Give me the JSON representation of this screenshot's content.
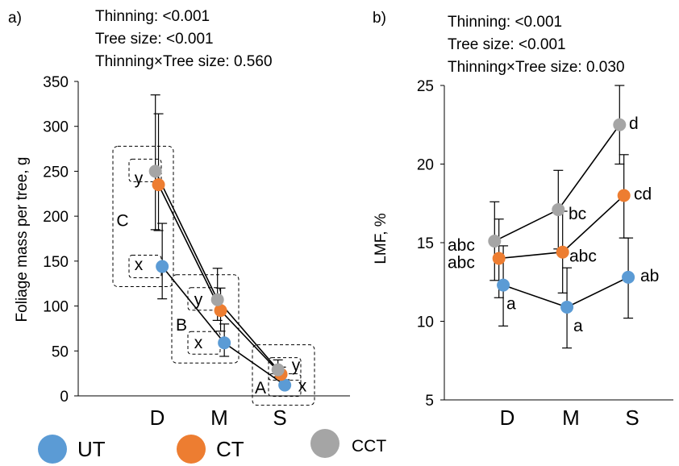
{
  "legend": [
    {
      "name": "UT",
      "color": "#5b9bd5"
    },
    {
      "name": "CT",
      "color": "#ed7d31"
    },
    {
      "name": "CCT",
      "color": "#a5a5a5"
    }
  ],
  "chart_data": [
    {
      "type": "line",
      "panel_label": "a)",
      "stats": [
        "Thinning: <0.001",
        "Tree size: <0.001",
        "Thinning×Tree size: 0.560"
      ],
      "ylabel": "Foliage mass per tree, g",
      "xlabel": "",
      "categories": [
        "D",
        "M",
        "S"
      ],
      "ylim": [
        0,
        350
      ],
      "yticks": [
        0,
        50,
        100,
        150,
        200,
        250,
        300,
        350
      ],
      "series": [
        {
          "name": "UT",
          "color": "#5b9bd5",
          "values": [
            144,
            59,
            12
          ],
          "err_low": [
            108,
            44,
            8
          ],
          "err_high": [
            192,
            80,
            18
          ]
        },
        {
          "name": "CT",
          "color": "#ed7d31",
          "values": [
            235,
            95,
            24
          ],
          "err_low": [
            184,
            72,
            18
          ],
          "err_high": [
            314,
            120,
            32
          ]
        },
        {
          "name": "CCT",
          "color": "#a5a5a5",
          "values": [
            250,
            107,
            29
          ],
          "err_low": [
            185,
            84,
            21
          ],
          "err_high": [
            335,
            142,
            40
          ]
        }
      ],
      "annotations": [
        {
          "text": "C",
          "group": "D",
          "dy": 196
        },
        {
          "text": "y",
          "group": "D",
          "dy": 243
        },
        {
          "text": "x",
          "group": "D",
          "dy": 147
        },
        {
          "text": "B",
          "group": "M",
          "dy": 80
        },
        {
          "text": "y",
          "group": "M",
          "dy": 108
        },
        {
          "text": "x",
          "group": "M",
          "dy": 60
        },
        {
          "text": "A",
          "group": "S",
          "dy": 10
        },
        {
          "text": "y",
          "group": "S",
          "dy": 35
        },
        {
          "text": "x",
          "group": "S",
          "dy": 12
        }
      ]
    },
    {
      "type": "line",
      "panel_label": "b)",
      "stats": [
        "Thinning: <0.001",
        "Tree size: <0.001",
        "Thinning×Tree size: 0.030"
      ],
      "ylabel": "LMF, %",
      "xlabel": "",
      "categories": [
        "D",
        "M",
        "S"
      ],
      "ylim": [
        5,
        25
      ],
      "yticks": [
        5,
        10,
        15,
        20,
        25
      ],
      "series": [
        {
          "name": "UT",
          "color": "#5b9bd5",
          "values": [
            12.3,
            10.9,
            12.8
          ],
          "err_low": [
            9.7,
            8.3,
            10.2
          ],
          "err_high": [
            14.8,
            13.4,
            15.3
          ],
          "letters": [
            "a",
            "a",
            "ab"
          ]
        },
        {
          "name": "CT",
          "color": "#ed7d31",
          "values": [
            14.0,
            14.4,
            18.0
          ],
          "err_low": [
            11.5,
            11.8,
            15.3
          ],
          "err_high": [
            16.5,
            17.0,
            20.6
          ],
          "letters": [
            "abc",
            "abc",
            "cd"
          ]
        },
        {
          "name": "CCT",
          "color": "#a5a5a5",
          "values": [
            15.1,
            17.1,
            22.5
          ],
          "err_low": [
            12.6,
            14.6,
            20.0
          ],
          "err_high": [
            17.6,
            19.6,
            25.0
          ],
          "letters": [
            "abc",
            "bc",
            "d"
          ]
        }
      ]
    }
  ]
}
